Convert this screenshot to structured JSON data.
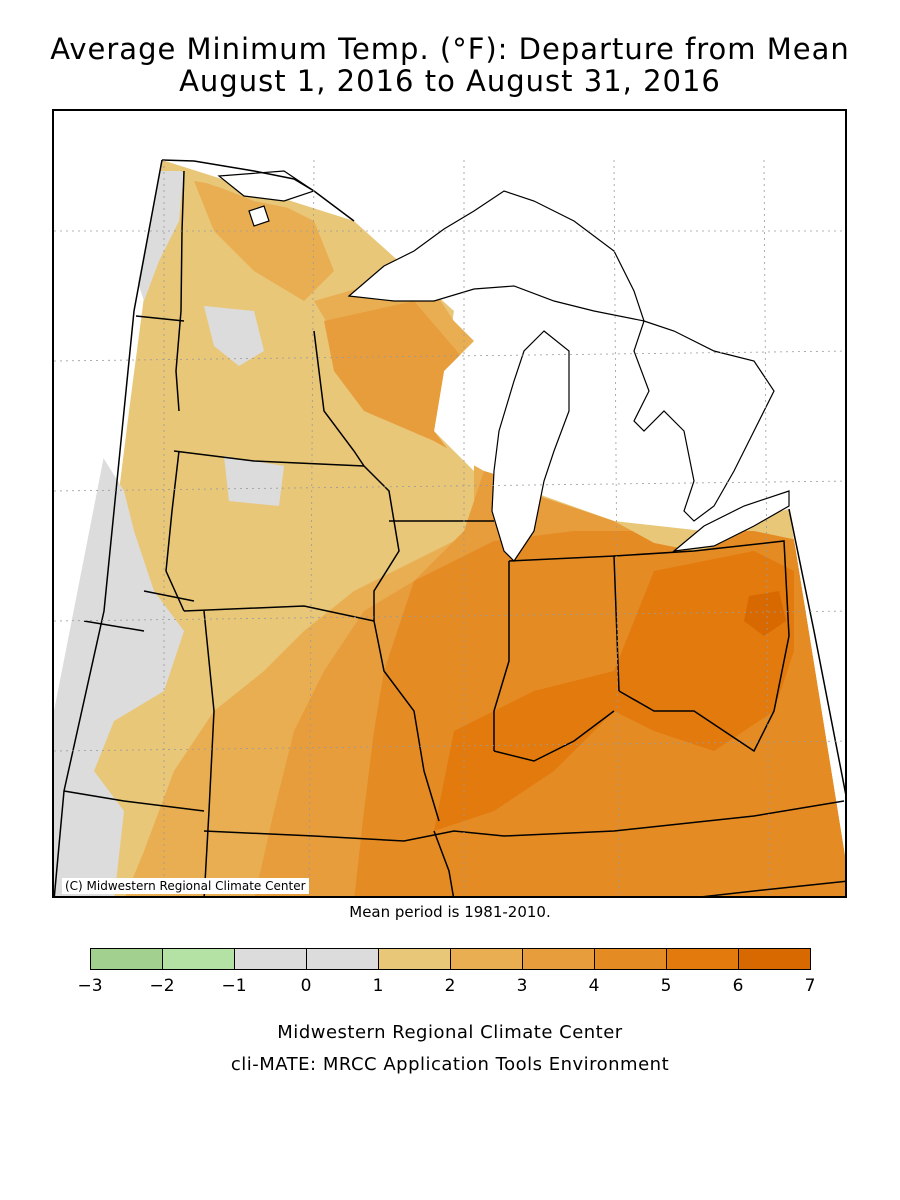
{
  "title": {
    "line1": "Average Minimum Temp. (°F): Departure from Mean",
    "line2": "August 1, 2016 to August 31, 2016"
  },
  "map": {
    "copyright": "(C) Midwestern Regional Climate Center",
    "mean_note": "Mean period is 1981-2010."
  },
  "legend": {
    "ticks": [
      "-3",
      "-2",
      "-1",
      "0",
      "1",
      "2",
      "3",
      "4",
      "5",
      "6",
      "7"
    ],
    "colors": [
      "#a2d08e",
      "#b4e2a5",
      "#dcdcdc",
      "#dcdcdc",
      "#e8c779",
      "#e9ae52",
      "#e79d3c",
      "#e58b24",
      "#e27a0d",
      "#d86800"
    ]
  },
  "footer": {
    "line1": "Midwestern Regional Climate Center",
    "line2": "cli-MATE: MRCC Application Tools Environment"
  }
}
